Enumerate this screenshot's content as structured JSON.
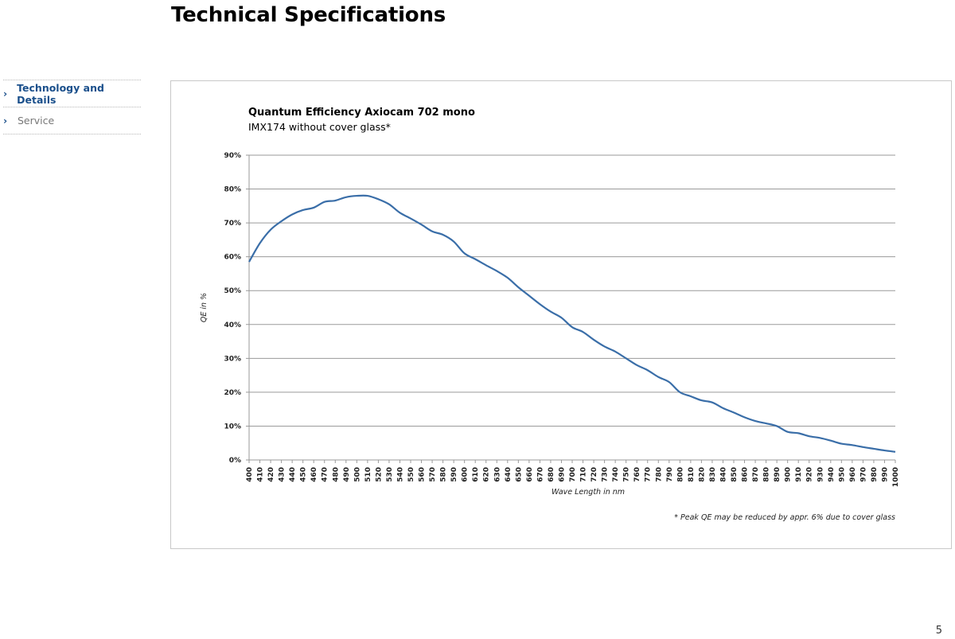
{
  "page": {
    "title": "Technical Specifications",
    "number": "5"
  },
  "nav": {
    "items": [
      {
        "label": "Technology and Details",
        "active": true
      },
      {
        "label": "Service",
        "active": false
      }
    ]
  },
  "chart_data": {
    "type": "line",
    "title": "Quantum Efficiency Axiocam 702 mono",
    "subtitle": "IMX174 without cover glass*",
    "xlabel": "Wave Length in nm",
    "ylabel": "QE in %",
    "footnote": "* Peak QE may be reduced by appr. 6% due to cover glass",
    "xlim": [
      400,
      1000
    ],
    "ylim": [
      0,
      90
    ],
    "yticks": [
      0,
      10,
      20,
      30,
      40,
      50,
      60,
      70,
      80,
      90
    ],
    "ytick_suffix": "%",
    "xtick_step": 10,
    "grid": true,
    "line_color": "#3a6ea8",
    "series": [
      {
        "x": [
          400,
          410,
          420,
          430,
          440,
          450,
          460,
          470,
          480,
          490,
          500,
          510,
          520,
          530,
          540,
          550,
          560,
          570,
          580,
          590,
          600,
          610,
          620,
          630,
          640,
          650,
          660,
          670,
          680,
          690,
          700,
          710,
          720,
          730,
          740,
          750,
          760,
          770,
          780,
          790,
          800,
          810,
          820,
          830,
          840,
          850,
          860,
          870,
          880,
          890,
          900,
          910,
          920,
          930,
          940,
          950,
          960,
          970,
          980,
          990,
          1000
        ],
        "y": [
          58.5,
          64,
          68,
          70.5,
          72.5,
          73.8,
          74.5,
          76.2,
          76.6,
          77.6,
          78,
          78,
          77,
          75.5,
          73,
          71.3,
          69.5,
          67.5,
          66.5,
          64.5,
          61,
          59.3,
          57.5,
          55.8,
          53.8,
          51,
          48.5,
          46,
          43.8,
          42,
          39.2,
          37.8,
          35.5,
          33.5,
          32,
          30,
          28,
          26.5,
          24.5,
          23,
          20,
          18.8,
          17.6,
          17,
          15.3,
          14,
          12.6,
          11.5,
          10.8,
          10,
          8.3,
          7.9,
          7,
          6.5,
          5.7,
          4.8,
          4.4,
          3.8,
          3.3,
          2.8,
          2.4
        ]
      }
    ]
  }
}
